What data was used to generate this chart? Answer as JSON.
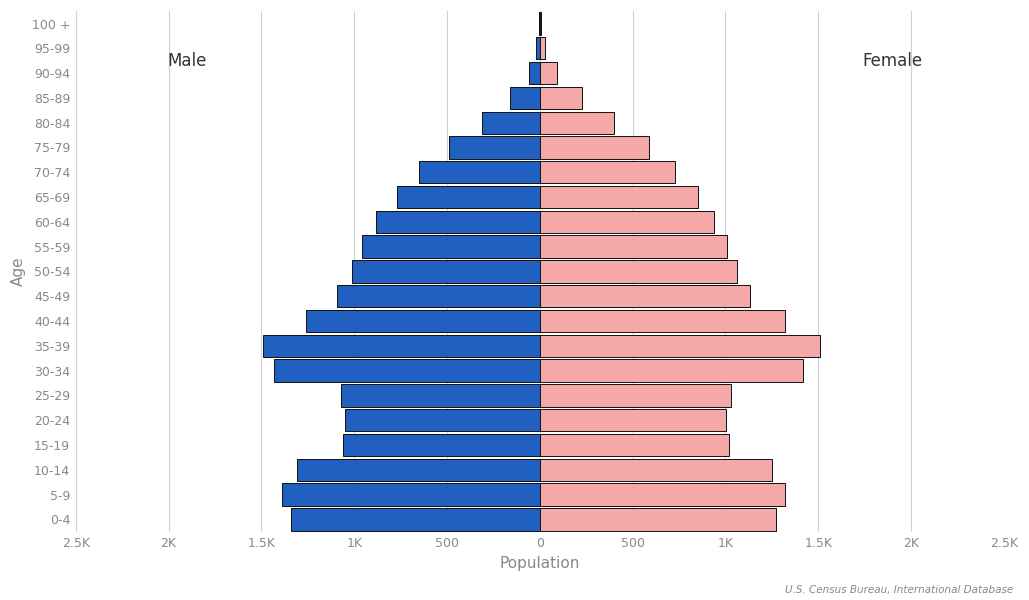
{
  "age_groups": [
    "0-4",
    "5-9",
    "10-14",
    "15-19",
    "20-24",
    "25-29",
    "30-34",
    "35-39",
    "40-44",
    "45-49",
    "50-54",
    "55-59",
    "60-64",
    "65-69",
    "70-74",
    "75-79",
    "80-84",
    "85-89",
    "90-94",
    "95-99",
    "100 +"
  ],
  "male_vals": [
    1340,
    1390,
    1310,
    1060,
    1050,
    1070,
    1430,
    1490,
    1260,
    1090,
    1010,
    960,
    880,
    770,
    650,
    490,
    310,
    160,
    60,
    18,
    4
  ],
  "female_vals": [
    1270,
    1320,
    1250,
    1020,
    1005,
    1030,
    1420,
    1510,
    1320,
    1130,
    1060,
    1010,
    940,
    850,
    730,
    590,
    400,
    225,
    95,
    30,
    7
  ],
  "male_color": "#2060c0",
  "female_color": "#f4a9a8",
  "edge_color": "#111111",
  "background_color": "#ffffff",
  "grid_color": "#d0d0d8",
  "text_color": "#888888",
  "xlabel": "Population",
  "ylabel": "Age",
  "xlim": 2500,
  "tick_positions": [
    -2500,
    -2000,
    -1500,
    -1000,
    -500,
    0,
    500,
    1000,
    1500,
    2000,
    2500
  ],
  "tick_labels": [
    "2.5K",
    "2K",
    "1.5K",
    "1K",
    "500",
    "0",
    "500",
    "1K",
    "1.5K",
    "2K",
    "2.5K"
  ],
  "source_text": "U.S. Census Bureau, International Database",
  "male_label": "Male",
  "female_label": "Female",
  "bar_height": 0.9,
  "label_fontsize": 12,
  "axis_fontsize": 9,
  "xlabel_fontsize": 11,
  "ylabel_fontsize": 11
}
